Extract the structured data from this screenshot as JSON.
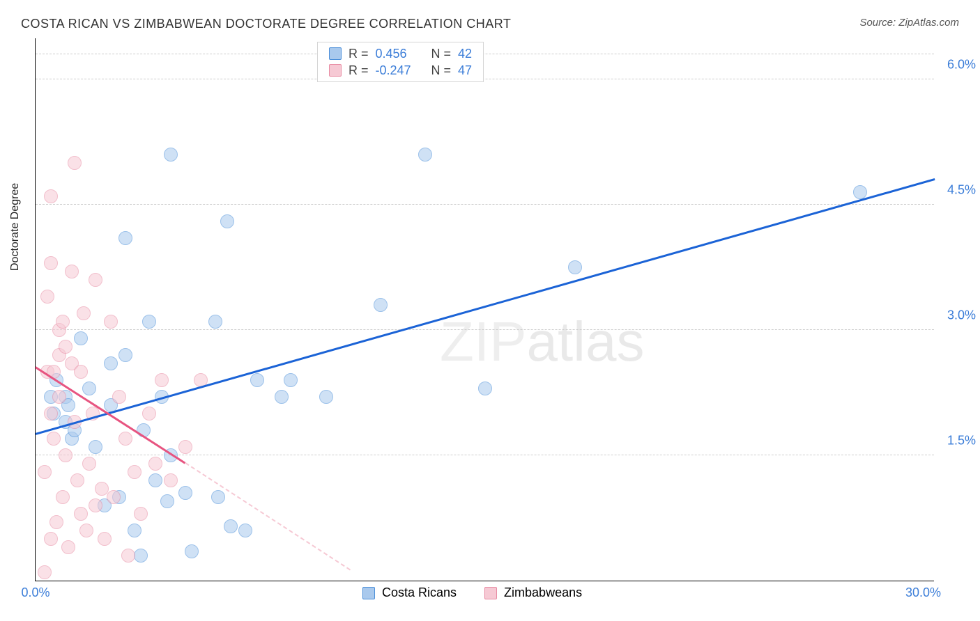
{
  "title": "COSTA RICAN VS ZIMBABWEAN DOCTORATE DEGREE CORRELATION CHART",
  "source_label": "Source: ZipAtlas.com",
  "y_axis_label": "Doctorate Degree",
  "watermark": {
    "part1": "ZIP",
    "part2": "atlas"
  },
  "chart": {
    "type": "scatter",
    "xlim": [
      0,
      30
    ],
    "ylim": [
      0,
      6.5
    ],
    "x_ticks": [
      {
        "v": 0,
        "label": "0.0%"
      },
      {
        "v": 30,
        "label": "30.0%"
      }
    ],
    "y_gridlines": [
      1.5,
      3.0,
      4.5,
      6.0
    ],
    "y_tick_labels": [
      "1.5%",
      "3.0%",
      "4.5%",
      "6.0%"
    ],
    "dashed_gridlines_top": 6.3,
    "grid_color": "#cccccc",
    "background_color": "#ffffff",
    "axis_color": "#000000",
    "tick_label_color": "#3b7dd8",
    "tick_fontsize": 18,
    "title_fontsize": 18,
    "marker_radius": 10,
    "marker_opacity": 0.55,
    "series": [
      {
        "name": "Costa Ricans",
        "color_fill": "#a9c9ed",
        "color_stroke": "#4b8fd9",
        "r": 0.456,
        "n": 42,
        "trend": {
          "x1": 0,
          "y1": 1.75,
          "x2": 30,
          "y2": 4.8,
          "color": "#1b63d6",
          "width": 2.5,
          "style": "solid"
        },
        "points": [
          [
            0.5,
            2.2
          ],
          [
            0.6,
            2.0
          ],
          [
            0.7,
            2.4
          ],
          [
            1.0,
            1.9
          ],
          [
            1.0,
            2.2
          ],
          [
            1.1,
            2.1
          ],
          [
            1.2,
            1.7
          ],
          [
            1.3,
            1.8
          ],
          [
            1.5,
            2.9
          ],
          [
            2.0,
            1.6
          ],
          [
            2.3,
            0.9
          ],
          [
            2.5,
            2.1
          ],
          [
            2.5,
            2.6
          ],
          [
            2.8,
            1.0
          ],
          [
            3.0,
            2.7
          ],
          [
            3.0,
            4.1
          ],
          [
            3.3,
            0.6
          ],
          [
            3.5,
            0.3
          ],
          [
            3.6,
            1.8
          ],
          [
            3.8,
            3.1
          ],
          [
            4.0,
            1.2
          ],
          [
            4.2,
            2.2
          ],
          [
            4.4,
            0.95
          ],
          [
            4.5,
            1.5
          ],
          [
            4.5,
            5.1
          ],
          [
            5.0,
            1.05
          ],
          [
            5.2,
            0.35
          ],
          [
            6.0,
            3.1
          ],
          [
            6.1,
            1.0
          ],
          [
            6.4,
            4.3
          ],
          [
            6.5,
            0.65
          ],
          [
            7.0,
            0.6
          ],
          [
            7.4,
            2.4
          ],
          [
            8.2,
            2.2
          ],
          [
            8.5,
            2.4
          ],
          [
            9.7,
            2.2
          ],
          [
            11.5,
            3.3
          ],
          [
            13.0,
            5.1
          ],
          [
            15.0,
            2.3
          ],
          [
            18.0,
            3.75
          ],
          [
            27.5,
            4.65
          ],
          [
            1.8,
            2.3
          ]
        ]
      },
      {
        "name": "Zimbabweans",
        "color_fill": "#f6c9d4",
        "color_stroke": "#e88ba3",
        "r": -0.247,
        "n": 47,
        "trend": {
          "x1": 0,
          "y1": 2.55,
          "x2": 5,
          "y2": 1.4,
          "color": "#e75480",
          "width": 2.5,
          "style": "solid"
        },
        "trend_dashed": {
          "x1": 5,
          "y1": 1.4,
          "x2": 10.5,
          "y2": 0.12,
          "color": "#f6c9d4",
          "width": 2,
          "style": "dashed"
        },
        "points": [
          [
            0.3,
            0.1
          ],
          [
            0.3,
            1.3
          ],
          [
            0.4,
            2.5
          ],
          [
            0.4,
            3.4
          ],
          [
            0.5,
            0.5
          ],
          [
            0.5,
            2.0
          ],
          [
            0.5,
            3.8
          ],
          [
            0.5,
            4.6
          ],
          [
            0.6,
            1.7
          ],
          [
            0.6,
            2.5
          ],
          [
            0.7,
            0.7
          ],
          [
            0.8,
            2.2
          ],
          [
            0.8,
            2.7
          ],
          [
            0.8,
            3.0
          ],
          [
            0.9,
            1.0
          ],
          [
            0.9,
            3.1
          ],
          [
            1.0,
            1.5
          ],
          [
            1.0,
            2.8
          ],
          [
            1.1,
            0.4
          ],
          [
            1.2,
            2.6
          ],
          [
            1.2,
            3.7
          ],
          [
            1.3,
            1.9
          ],
          [
            1.3,
            5.0
          ],
          [
            1.4,
            1.2
          ],
          [
            1.5,
            0.8
          ],
          [
            1.5,
            2.5
          ],
          [
            1.6,
            3.2
          ],
          [
            1.7,
            0.6
          ],
          [
            1.8,
            1.4
          ],
          [
            1.9,
            2.0
          ],
          [
            2.0,
            0.9
          ],
          [
            2.0,
            3.6
          ],
          [
            2.2,
            1.1
          ],
          [
            2.3,
            0.5
          ],
          [
            2.5,
            3.1
          ],
          [
            2.6,
            1.0
          ],
          [
            2.8,
            2.2
          ],
          [
            3.0,
            1.7
          ],
          [
            3.1,
            0.3
          ],
          [
            3.3,
            1.3
          ],
          [
            3.5,
            0.8
          ],
          [
            3.8,
            2.0
          ],
          [
            4.0,
            1.4
          ],
          [
            4.2,
            2.4
          ],
          [
            4.5,
            1.2
          ],
          [
            5.0,
            1.6
          ],
          [
            5.5,
            2.4
          ]
        ]
      }
    ]
  },
  "legend_top": {
    "rows": [
      {
        "swatch": "blue",
        "r_label": "R =",
        "r_val": "0.456",
        "n_label": "N =",
        "n_val": "42"
      },
      {
        "swatch": "pink",
        "r_label": "R =",
        "r_val": "-0.247",
        "n_label": "N =",
        "n_val": "47"
      }
    ]
  },
  "legend_bottom": {
    "items": [
      {
        "swatch": "blue",
        "label": "Costa Ricans"
      },
      {
        "swatch": "pink",
        "label": "Zimbabweans"
      }
    ]
  }
}
